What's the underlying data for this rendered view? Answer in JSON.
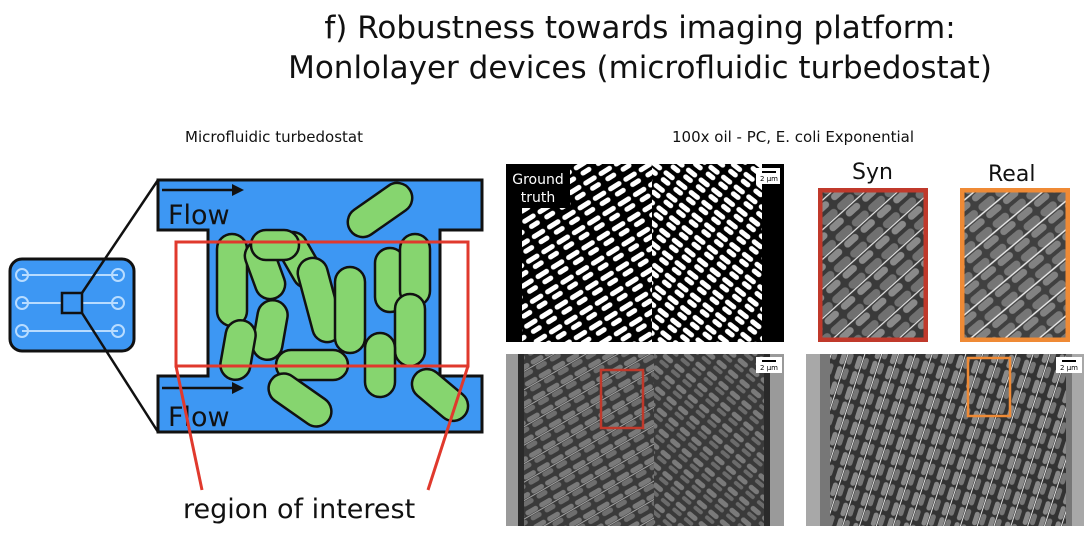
{
  "title": {
    "line1": "f) Robustness towards imaging platform:",
    "line2": "Monlolayer devices (microfluidic turbedostat)"
  },
  "left": {
    "heading": "Microfluidic turbedostat",
    "flow_label": "Flow",
    "roi_label": "region of interest"
  },
  "right": {
    "heading": "100x oil - PC, E. coli Exponential",
    "ground_truth_label": "Ground truth",
    "ground_truth_line1": "Ground",
    "ground_truth_line2": "truth",
    "scale_bar": "2 µm",
    "syn_label": "Syn",
    "real_label": "Real"
  },
  "colors": {
    "channel": "#3d97f3",
    "cell": "#86d56f",
    "roi": "#e0392d",
    "syn_frame": "#c0392b",
    "real_frame": "#ef8a35"
  }
}
